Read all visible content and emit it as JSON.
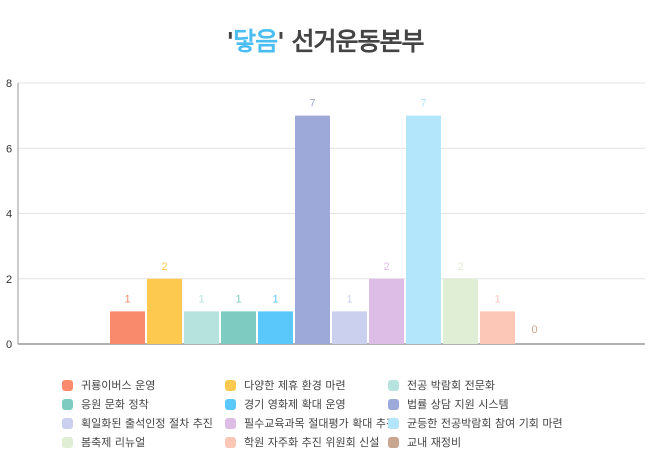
{
  "chart_data": {
    "type": "bar",
    "title_quote_open": "'",
    "title_highlight": "닿음",
    "title_quote_close": "'",
    "title_rest": " 선거운동본부",
    "xlabel": "",
    "ylabel": "",
    "ylim": [
      0,
      8
    ],
    "yticks": [
      0,
      2,
      4,
      6,
      8
    ],
    "grid": true,
    "legend_position": "bottom",
    "series": [
      {
        "name": "귀룡이버스 운영",
        "value": 1,
        "color": "#f98a6c"
      },
      {
        "name": "다양한 제휴 환경 마련",
        "value": 2,
        "color": "#fdc94e"
      },
      {
        "name": "전공 박람회 전문화",
        "value": 1,
        "color": "#b6e3dd"
      },
      {
        "name": "응원 문화 정착",
        "value": 1,
        "color": "#7ecbc1"
      },
      {
        "name": "경기 영화제 확대 운영",
        "value": 1,
        "color": "#5ac8fb"
      },
      {
        "name": "법률 상담 지원 시스템",
        "value": 7,
        "color": "#9da9d8"
      },
      {
        "name": "획일화된 출석인정 절차 추진",
        "value": 1,
        "color": "#cbd0ee"
      },
      {
        "name": "필수교육과목 절대평가 확대 추진",
        "value": 2,
        "color": "#ddbde6"
      },
      {
        "name": "균등한 전공박람회 참여 기회 마련",
        "value": 7,
        "color": "#b4e6fb"
      },
      {
        "name": "봄축제 리뉴얼",
        "value": 2,
        "color": "#e0eed6"
      },
      {
        "name": "학원 자주화 추진 위원회 신설",
        "value": 1,
        "color": "#fdc7b8"
      },
      {
        "name": "교내 재정비",
        "value": 0,
        "color": "#c9a690"
      }
    ]
  }
}
